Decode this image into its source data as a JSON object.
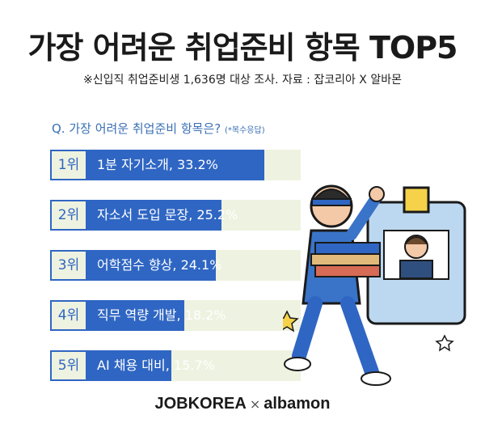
{
  "title": "가장 어려운 취업준비 항목 TOP5",
  "subtitle": "※신입직 취업준비생 1,636명 대상 조사. 자료 : 잡코리아 X 알바몬",
  "question": "Q. 가장 어려운 취업준비 항목은?",
  "question_note": "(*복수응답)",
  "chart_data": {
    "type": "bar",
    "orientation": "horizontal",
    "categories": [
      "1위",
      "2위",
      "3위",
      "4위",
      "5위"
    ],
    "labels": [
      "1분 자기소개, 33.2%",
      "자소서 도입 문장, 25.2%",
      "어학점수 향상, 24.1%",
      "직무 역량 개발, 18.2%",
      "AI 채용 대비, 15.7%"
    ],
    "values": [
      33.2,
      25.2,
      24.1,
      18.2,
      15.7
    ],
    "unit": "%",
    "xlim": [
      0,
      40
    ],
    "colors": {
      "bar": "#2f66c3",
      "track": "#eef2e0"
    }
  },
  "logo": {
    "jobkorea": "JOBKOREA",
    "x": "×",
    "albamon": "albamon"
  }
}
